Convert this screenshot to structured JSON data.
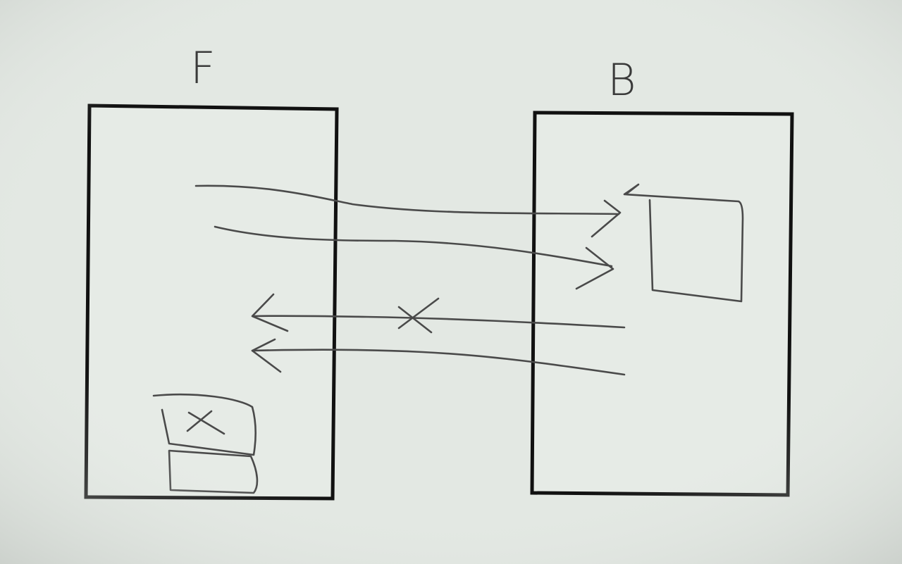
{
  "diagram": {
    "left_box": {
      "label": "F"
    },
    "right_box": {
      "label": "B"
    },
    "arrows": [
      {
        "direction": "left-to-right",
        "blocked": false
      },
      {
        "direction": "left-to-right",
        "blocked": false
      },
      {
        "direction": "right-to-left",
        "blocked": true,
        "mark": "×"
      },
      {
        "direction": "right-to-left",
        "blocked": false
      }
    ],
    "left_box_marked_cell": "×"
  },
  "colors": {
    "background": "#e3e8e3",
    "box_border": "#111111",
    "pen": "#4a4a4a"
  }
}
